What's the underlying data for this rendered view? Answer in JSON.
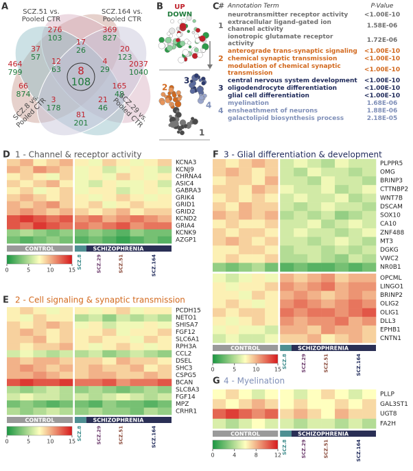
{
  "panel_labels": [
    "A",
    "B",
    "C",
    "D",
    "E",
    "F",
    "G"
  ],
  "venn": {
    "sets": [
      "SCZ.51 vs. Pooled CTR",
      "SCZ.164 vs. Pooled CTR",
      "SCZ.8 vs. Pooled CTR",
      "SCZ.29 vs. Pooled CTR"
    ],
    "set_colors": [
      "#c79a8e",
      "#d6aebf",
      "#8fbcc6",
      "#c4c2d6"
    ],
    "up_color": "#c0202a",
    "down_color": "#1e7a3a",
    "regions": [
      {
        "up": 276,
        "down": 103
      },
      {
        "up": 369,
        "down": 827
      },
      {
        "up": 464,
        "down": 799
      },
      {
        "up": 2037,
        "down": 1040
      },
      {
        "up": 37,
        "down": 57
      },
      {
        "up": 17,
        "down": 26
      },
      {
        "up": 20,
        "down": 123
      },
      {
        "up": 12,
        "down": 63
      },
      {
        "up": 4,
        "down": 29
      },
      {
        "up": 8,
        "down": 108
      },
      {
        "up": 66,
        "down": 874
      },
      {
        "up": 165,
        "down": 48
      },
      {
        "up": 3,
        "down": 178
      },
      {
        "up": 21,
        "down": 46
      },
      {
        "up": 81,
        "down": 201
      }
    ]
  },
  "network": {
    "up_label": "UP",
    "down_label": "DOWN",
    "modules": [
      "1",
      "2",
      "3",
      "4"
    ]
  },
  "annotation": {
    "header": [
      "#",
      "Annotation Term",
      "P-Value"
    ],
    "groups": [
      {
        "module": "1",
        "color": "#6e6e6e",
        "terms": [
          {
            "term": "neurotransmitter receptor activity",
            "p": "<1.00E-10"
          },
          {
            "term": "extracellular ligand-gated ion channel activity",
            "p": "1.58E-06"
          },
          {
            "term": "ionotropic glutamate receptor activity",
            "p": "1.72E-06"
          }
        ]
      },
      {
        "module": "2",
        "color": "#d2691e",
        "terms": [
          {
            "term": "anterograde trans-synaptic signaling",
            "p": "<1.00E-10"
          },
          {
            "term": "chemical synaptic transmission",
            "p": "<1.00E-10"
          },
          {
            "term": "modulation of chemical synaptic transmission",
            "p": "<1.00E-10"
          }
        ]
      },
      {
        "module": "3",
        "color": "#1f2a5a",
        "terms": [
          {
            "term": "central nervous system development",
            "p": "<1.00E-10"
          },
          {
            "term": "oligodendrocyte differentiation",
            "p": "<1.00E-10"
          },
          {
            "term": "glial cell differentiation",
            "p": "<1.00E-10"
          }
        ]
      },
      {
        "module": "4",
        "color": "#7f8fb8",
        "terms": [
          {
            "term": "myelination",
            "p": "1.68E-06"
          },
          {
            "term": "ensheathment of neurons",
            "p": "1.88E-06"
          },
          {
            "term": "galactolipid biosynthesis process",
            "p": "2.18E-05"
          }
        ]
      }
    ]
  },
  "colormap": [
    "#1a9641",
    "#ffffbf",
    "#d7191c"
  ],
  "subgroup_colors": [
    "#3a8a8a",
    "#6b3a6b",
    "#8a4a3a",
    "#1f2a5a"
  ],
  "heatmaps": [
    {
      "title": "1 - Channel & receptor activity",
      "title_color": "#555555",
      "scale": [
        0,
        15
      ],
      "ticks": [
        0,
        5,
        10,
        15
      ],
      "groups": [
        "CONTROL",
        "SCHIZOPHRENIA"
      ],
      "subgroups": [
        "SCZ.8",
        "SCZ.29",
        "SCZ.51",
        "SCZ.164"
      ],
      "genes": [
        "KCNA3",
        "KCNJ9",
        "CHRNA4",
        "ASIC4",
        "GABRA3",
        "GRIK4",
        "GRID1",
        "GRID2",
        "KCND2",
        "GRIA4",
        "KCNK9",
        "AZGP1"
      ],
      "control": [
        [
          9,
          10,
          8,
          9,
          10
        ],
        [
          10,
          9,
          11,
          10,
          9
        ],
        [
          8,
          9,
          8,
          7,
          9
        ],
        [
          9,
          8,
          9,
          10,
          8
        ],
        [
          8,
          9,
          7,
          8,
          9
        ],
        [
          9,
          10,
          9,
          8,
          9
        ],
        [
          10,
          9,
          10,
          11,
          9
        ],
        [
          10,
          11,
          10,
          9,
          10
        ],
        [
          13,
          14,
          13,
          12,
          13
        ],
        [
          13,
          12,
          14,
          13,
          12
        ],
        [
          4,
          5,
          4,
          3,
          4
        ],
        [
          3,
          2,
          3,
          4,
          3
        ]
      ],
      "scz": [
        [
          8,
          7,
          9,
          8,
          7,
          8,
          9
        ],
        [
          7,
          8,
          6,
          7,
          8,
          7,
          6
        ],
        [
          7,
          8,
          7,
          9,
          8,
          7,
          8
        ],
        [
          7,
          6,
          8,
          7,
          7,
          8,
          6
        ],
        [
          7,
          8,
          8,
          6,
          7,
          8,
          7
        ],
        [
          8,
          7,
          8,
          9,
          8,
          7,
          8
        ],
        [
          8,
          9,
          7,
          8,
          9,
          8,
          8
        ],
        [
          9,
          8,
          9,
          10,
          8,
          9,
          9
        ],
        [
          11,
          12,
          10,
          11,
          12,
          11,
          10
        ],
        [
          12,
          11,
          12,
          13,
          11,
          12,
          12
        ],
        [
          3,
          4,
          3,
          2,
          4,
          3,
          3
        ],
        [
          2,
          3,
          2,
          1,
          2,
          3,
          2
        ]
      ]
    },
    {
      "title": "2 - Cell signaling & synaptic transmission",
      "title_color": "#d2691e",
      "scale": [
        0,
        15
      ],
      "ticks": [
        0,
        5,
        10,
        15
      ],
      "groups": [
        "CONTROL",
        "SCHIZOPHRENIA"
      ],
      "subgroups": [
        "SCZ.8",
        "SCZ.29",
        "SCZ.51",
        "SCZ.164"
      ],
      "genes": [
        "PCDH15",
        "NETO1",
        "SHISA7",
        "FGF12",
        "SLC6A1",
        "RPH3A",
        "CCL2",
        "DSEL",
        "SHC3",
        "CSPG5",
        "BCAN",
        "SLC8A3",
        "FGF14",
        "MPZ",
        "CRHR1"
      ],
      "control": [
        [
          8,
          9,
          8,
          7,
          8
        ],
        [
          8,
          7,
          9,
          8,
          8
        ],
        [
          9,
          8,
          9,
          10,
          9
        ],
        [
          9,
          10,
          9,
          8,
          9
        ],
        [
          9,
          9,
          10,
          8,
          9
        ],
        [
          9,
          8,
          9,
          9,
          10
        ],
        [
          6,
          7,
          6,
          5,
          6
        ],
        [
          10,
          9,
          10,
          10,
          9
        ],
        [
          10,
          11,
          10,
          9,
          10
        ],
        [
          10,
          10,
          11,
          10,
          9
        ],
        [
          13,
          14,
          13,
          13,
          14
        ],
        [
          5,
          4,
          5,
          6,
          5
        ],
        [
          6,
          7,
          6,
          6,
          5
        ],
        [
          3,
          4,
          3,
          2,
          3
        ],
        [
          5,
          4,
          5,
          6,
          5
        ]
      ],
      "scz": [
        [
          8,
          7,
          8,
          9,
          7,
          8,
          8
        ],
        [
          5,
          6,
          4,
          6,
          5,
          6,
          5
        ],
        [
          7,
          8,
          6,
          7,
          7,
          8,
          7
        ],
        [
          8,
          8,
          9,
          7,
          8,
          8,
          9
        ],
        [
          8,
          9,
          8,
          8,
          7,
          9,
          8
        ],
        [
          8,
          7,
          8,
          9,
          8,
          7,
          8
        ],
        [
          5,
          6,
          4,
          5,
          6,
          5,
          4
        ],
        [
          9,
          9,
          8,
          10,
          9,
          9,
          8
        ],
        [
          9,
          10,
          9,
          9,
          10,
          8,
          9
        ],
        [
          9,
          10,
          10,
          9,
          9,
          10,
          9
        ],
        [
          12,
          12,
          13,
          11,
          12,
          12,
          13
        ],
        [
          4,
          5,
          4,
          3,
          4,
          5,
          4
        ],
        [
          6,
          5,
          6,
          7,
          6,
          5,
          6
        ],
        [
          3,
          2,
          4,
          3,
          3,
          2,
          3
        ],
        [
          4,
          5,
          4,
          4,
          3,
          5,
          4
        ]
      ]
    },
    {
      "title": "3 - Glial differentiation & development",
      "title_color": "#1f2a5a",
      "scale": [
        0,
        15
      ],
      "ticks": [
        0,
        5,
        10,
        15
      ],
      "groups": [
        "CONTROL",
        "SCHIZOPHRENIA"
      ],
      "subgroups": [
        "SCZ.8",
        "SCZ.29",
        "SCZ.51",
        "SCZ.164"
      ],
      "genes": [
        "PLPPR5",
        "OMG",
        "BRINP3",
        "CTTNBP2",
        "WNT7B",
        "DSCAM",
        "SOX10",
        "CA10",
        "ZNF488",
        "MT3",
        "DGKG",
        "VWC2",
        "NR0B1",
        "OPCML",
        "LINGO1",
        "BRINP2",
        "OLIG2",
        "OLIG1",
        "DLL3",
        "EPHB1",
        "CNTN1"
      ],
      "control": [
        [
          9,
          8,
          9,
          10,
          9
        ],
        [
          9,
          10,
          9,
          8,
          9
        ],
        [
          8,
          9,
          9,
          8,
          10
        ],
        [
          9,
          9,
          8,
          10,
          9
        ],
        [
          8,
          9,
          8,
          9,
          8
        ],
        [
          9,
          8,
          10,
          9,
          9
        ],
        [
          10,
          9,
          10,
          9,
          10
        ],
        [
          8,
          9,
          8,
          8,
          9
        ],
        [
          9,
          8,
          9,
          9,
          8
        ],
        [
          9,
          10,
          9,
          8,
          9
        ],
        [
          8,
          8,
          9,
          9,
          8
        ],
        [
          8,
          9,
          8,
          8,
          9
        ],
        [
          4,
          3,
          4,
          5,
          3
        ],
        [
          7,
          6,
          7,
          8,
          7
        ],
        [
          8,
          7,
          8,
          8,
          9
        ],
        [
          8,
          8,
          7,
          9,
          8
        ],
        [
          8,
          9,
          8,
          7,
          8
        ],
        [
          9,
          8,
          9,
          9,
          8
        ],
        [
          8,
          7,
          8,
          9,
          8
        ],
        [
          7,
          8,
          7,
          7,
          6
        ],
        [
          6,
          7,
          6,
          6,
          7
        ]
      ],
      "scz": [
        [
          6,
          7,
          6,
          5,
          7,
          6,
          6
        ],
        [
          6,
          5,
          7,
          6,
          6,
          5,
          6
        ],
        [
          6,
          6,
          5,
          7,
          6,
          6,
          5
        ],
        [
          7,
          6,
          6,
          7,
          5,
          6,
          7
        ],
        [
          6,
          7,
          6,
          6,
          7,
          5,
          6
        ],
        [
          6,
          5,
          6,
          7,
          6,
          6,
          5
        ],
        [
          5,
          6,
          5,
          6,
          4,
          5,
          6
        ],
        [
          6,
          6,
          7,
          5,
          6,
          7,
          6
        ],
        [
          6,
          7,
          6,
          6,
          5,
          6,
          7
        ],
        [
          6,
          6,
          5,
          6,
          7,
          6,
          5
        ],
        [
          5,
          6,
          6,
          5,
          6,
          5,
          6
        ],
        [
          5,
          5,
          6,
          5,
          4,
          6,
          5
        ],
        [
          2,
          3,
          2,
          2,
          3,
          2,
          3
        ],
        [
          10,
          9,
          10,
          11,
          9,
          10,
          10
        ],
        [
          11,
          10,
          11,
          12,
          10,
          11,
          11
        ],
        [
          10,
          11,
          10,
          9,
          10,
          11,
          10
        ],
        [
          11,
          12,
          11,
          10,
          11,
          12,
          11
        ],
        [
          12,
          11,
          12,
          12,
          11,
          12,
          13
        ],
        [
          11,
          10,
          11,
          11,
          12,
          10,
          11
        ],
        [
          10,
          10,
          9,
          11,
          10,
          10,
          9
        ],
        [
          9,
          9,
          10,
          8,
          9,
          10,
          9
        ]
      ]
    },
    {
      "title": "4 - Myelination",
      "title_color": "#7f8fb8",
      "scale": [
        0,
        12
      ],
      "ticks": [
        0,
        4,
        8,
        12
      ],
      "groups": [
        "CONTROL",
        "SCHIZOPHRENIA"
      ],
      "subgroups": [
        "SCZ.8",
        "SCZ.29",
        "SCZ.51",
        "SCZ.164"
      ],
      "genes": [
        "PLLP",
        "GAL3ST1",
        "UGT8",
        "FA2H"
      ],
      "control": [
        [
          6,
          7,
          6,
          5,
          6
        ],
        [
          7,
          6,
          7,
          8,
          7
        ],
        [
          10,
          11,
          10,
          9,
          10
        ],
        [
          5,
          4,
          5,
          6,
          5
        ]
      ],
      "scz": [
        [
          6,
          5,
          6,
          7,
          6,
          5,
          6
        ],
        [
          6,
          7,
          6,
          6,
          7,
          6,
          7
        ],
        [
          7,
          8,
          7,
          6,
          8,
          7,
          7
        ],
        [
          5,
          4,
          5,
          5,
          4,
          5,
          4
        ]
      ]
    }
  ]
}
